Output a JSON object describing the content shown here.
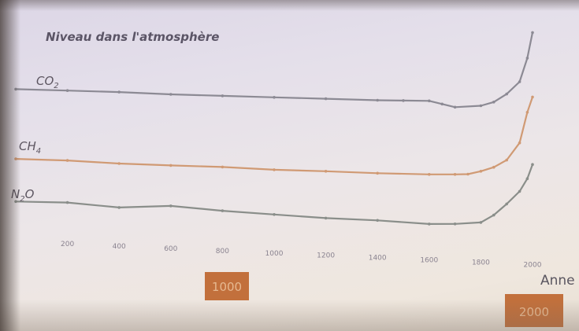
{
  "chart_data": {
    "type": "line",
    "title": "Niveau dans l'atmosphère",
    "xlabel": "Anne",
    "xlim": [
      0,
      2000
    ],
    "x_ticks": [
      200,
      400,
      600,
      800,
      1000,
      1200,
      1400,
      1600,
      1800,
      2000
    ],
    "series": [
      {
        "name": "CO2",
        "label_main": "CO",
        "label_sub": "2",
        "color": "#8c8a94",
        "x": [
          0,
          200,
          400,
          600,
          800,
          1000,
          1200,
          1400,
          1500,
          1600,
          1650,
          1700,
          1800,
          1850,
          1900,
          1950,
          1980,
          2000
        ],
        "values": [
          277,
          278,
          279,
          279,
          280,
          281,
          282,
          283,
          284,
          285,
          282,
          279,
          282,
          287,
          297,
          312,
          340,
          370
        ]
      },
      {
        "name": "CH4",
        "label_main": "CH",
        "label_sub": "4",
        "color": "#d09a74",
        "x": [
          0,
          200,
          400,
          600,
          800,
          1000,
          1200,
          1400,
          1600,
          1700,
          1750,
          1800,
          1850,
          1900,
          1950,
          1980,
          2000
        ],
        "values": [
          650,
          660,
          650,
          655,
          665,
          660,
          670,
          675,
          690,
          705,
          715,
          760,
          820,
          920,
          1150,
          1550,
          1750
        ]
      },
      {
        "name": "N2O",
        "label_main": "N",
        "label_sub": "2",
        "label_after": "O",
        "color": "#8a8e8a",
        "x": [
          0,
          200,
          400,
          600,
          800,
          1000,
          1200,
          1400,
          1600,
          1700,
          1800,
          1850,
          1900,
          1950,
          1980,
          2000
        ],
        "values": [
          270,
          271,
          269,
          272,
          270,
          269,
          268,
          268,
          267,
          268,
          270,
          276,
          285,
          295,
          305,
          316
        ]
      }
    ]
  },
  "badges": {
    "left": "1000",
    "right": "2000"
  }
}
